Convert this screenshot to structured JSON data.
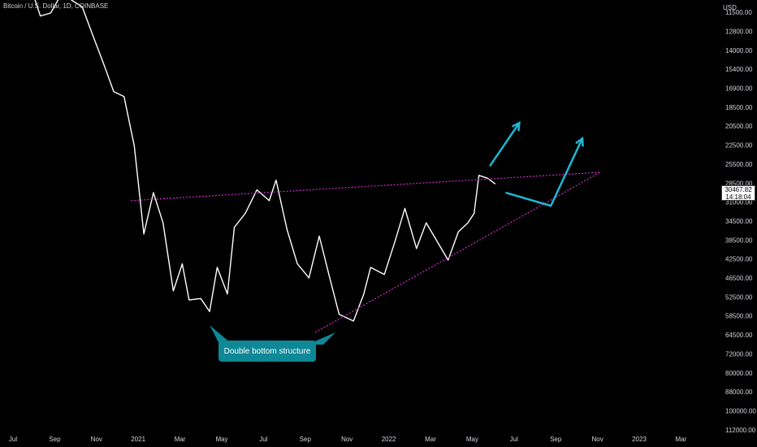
{
  "header": {
    "symbol_line": "Bitcoin / U.S. Dollar, 1D, COINBASE"
  },
  "price_badge": {
    "price": "30467.82",
    "countdown": "14:18:04"
  },
  "annotation": {
    "text": "Double bottom structure"
  },
  "chart_data": {
    "type": "line",
    "title": "Bitcoin / U.S. Dollar, 1D, COINBASE",
    "axis_unit": "USD",
    "y_axis_inverted": true,
    "y_scale": "log",
    "x_ticks": [
      "Jul",
      "Sep",
      "Nov",
      "2021",
      "Mar",
      "May",
      "Jul",
      "Sep",
      "Nov",
      "2022",
      "Mar",
      "May",
      "Jul",
      "Sep",
      "Nov",
      "2023",
      "Mar"
    ],
    "y_ticks": [
      "11500.00",
      "12800.00",
      "14000.00",
      "15400.00",
      "16900.00",
      "18500.00",
      "20500.00",
      "22500.00",
      "25500.00",
      "28500.00",
      "31000.00",
      "34500.00",
      "38500.00",
      "42500.00",
      "46500.00",
      "52500.00",
      "58500.00",
      "64500.00",
      "72000.00",
      "80000.00",
      "88000.00",
      "100000.00",
      "112000.00"
    ],
    "series": [
      {
        "values": [
          [
            "2020-06-25",
            9200
          ],
          [
            "2020-07-10",
            9250
          ],
          [
            "2020-07-25",
            9700
          ],
          [
            "2020-08-10",
            11700
          ],
          [
            "2020-08-25",
            11500
          ],
          [
            "2020-09-10",
            10300
          ],
          [
            "2020-09-25",
            10700
          ],
          [
            "2020-10-10",
            11100
          ],
          [
            "2020-10-25",
            13000
          ],
          [
            "2020-11-10",
            15300
          ],
          [
            "2020-11-25",
            18000
          ],
          [
            "2020-12-10",
            18500
          ],
          [
            "2020-12-25",
            24500
          ],
          [
            "2021-01-08",
            40500
          ],
          [
            "2021-01-22",
            32000
          ],
          [
            "2021-02-05",
            38000
          ],
          [
            "2021-02-20",
            56000
          ],
          [
            "2021-03-05",
            48000
          ],
          [
            "2021-03-15",
            59000
          ],
          [
            "2021-04-01",
            58500
          ],
          [
            "2021-04-14",
            63000
          ],
          [
            "2021-04-25",
            49000
          ],
          [
            "2021-05-10",
            57000
          ],
          [
            "2021-05-20",
            39000
          ],
          [
            "2021-06-05",
            36000
          ],
          [
            "2021-06-22",
            31500
          ],
          [
            "2021-07-10",
            33500
          ],
          [
            "2021-07-20",
            29800
          ],
          [
            "2021-08-05",
            39500
          ],
          [
            "2021-08-20",
            48000
          ],
          [
            "2021-09-06",
            52000
          ],
          [
            "2021-09-21",
            41000
          ],
          [
            "2021-10-05",
            51000
          ],
          [
            "2021-10-20",
            64000
          ],
          [
            "2021-11-10",
            66500
          ],
          [
            "2021-11-25",
            57000
          ],
          [
            "2021-12-05",
            49000
          ],
          [
            "2021-12-25",
            51000
          ],
          [
            "2022-01-10",
            42000
          ],
          [
            "2022-01-24",
            35000
          ],
          [
            "2022-02-10",
            44000
          ],
          [
            "2022-02-24",
            38000
          ],
          [
            "2022-03-28",
            47000
          ],
          [
            "2022-04-12",
            40000
          ],
          [
            "2022-04-26",
            38000
          ],
          [
            "2022-05-05",
            36000
          ],
          [
            "2022-05-12",
            29000
          ],
          [
            "2022-05-25",
            29500
          ],
          [
            "2022-06-05",
            30467.82
          ]
        ]
      }
    ],
    "drawings": [
      {
        "kind": "horizontal-resistance",
        "from": [
          "2020-12-20",
          33500
        ],
        "to": [
          "2022-11-05",
          28500
        ]
      },
      {
        "kind": "rising-support",
        "from": [
          "2021-09-15",
          71000
        ],
        "to": [
          "2022-11-05",
          28500
        ]
      },
      {
        "kind": "projection-arrow",
        "points": [
          [
            "2022-05-28",
            27500
          ],
          [
            "2022-07-10",
            21500
          ]
        ]
      },
      {
        "kind": "projection-arrow",
        "points": [
          [
            "2022-06-20",
            32000
          ],
          [
            "2022-08-25",
            34500
          ],
          [
            "2022-10-10",
            23500
          ]
        ]
      }
    ],
    "grid": false,
    "legend": "none",
    "colors": {
      "price": "#ffffff",
      "trendline": "#d02ed0",
      "arrow": "#1fb7d4",
      "note": "#0e8896"
    }
  }
}
